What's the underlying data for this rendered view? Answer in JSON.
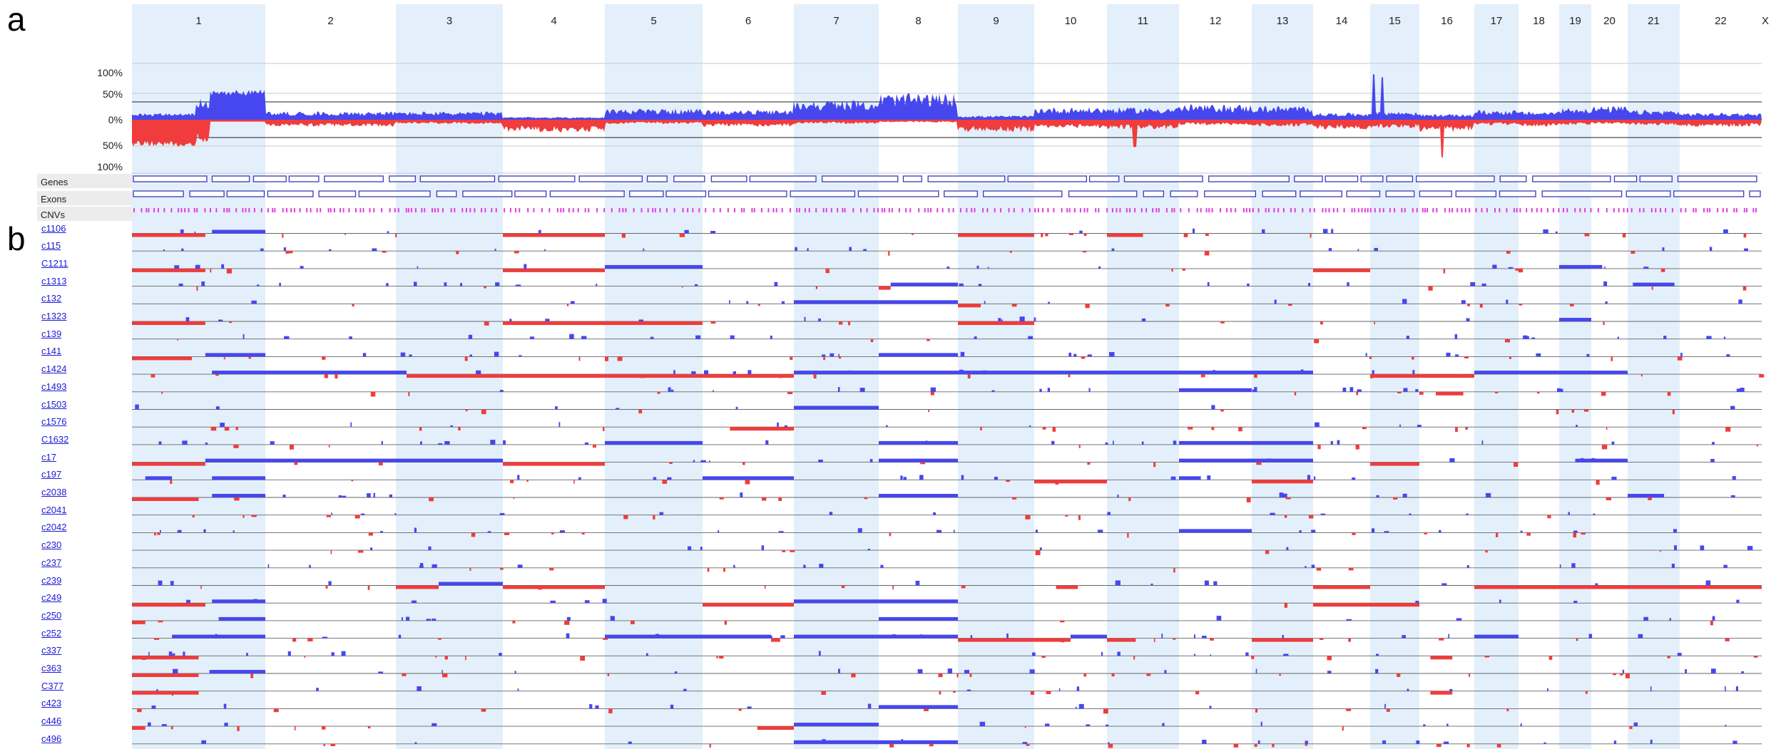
{
  "panel_labels": {
    "a": "a",
    "b": "b"
  },
  "chromosomes": [
    "1",
    "2",
    "3",
    "4",
    "5",
    "6",
    "7",
    "8",
    "9",
    "10",
    "11",
    "12",
    "13",
    "14",
    "15",
    "16",
    "17",
    "18",
    "19",
    "20",
    "21",
    "22",
    "X"
  ],
  "axis_labels": [
    "100%",
    "50%",
    "0%",
    "50%",
    "100%"
  ],
  "track_labels": {
    "genes": "Genes",
    "exons": "Exons",
    "cnvs": "CNVs"
  },
  "samples": [
    "c1106",
    "c115",
    "C1211",
    "c1313",
    "c132",
    "c1323",
    "c139",
    "c141",
    "c1424",
    "c1493",
    "c1503",
    "c1576",
    "C1632",
    "c17",
    "c197",
    "c2038",
    "c2041",
    "c2042",
    "c230",
    "c237",
    "c239",
    "c249",
    "c250",
    "c252",
    "c337",
    "c363",
    "C377",
    "c423",
    "c446",
    "c496"
  ],
  "colors": {
    "gain": "#4747ef",
    "loss": "#f03c3c",
    "band": "#e3f0fb",
    "cnv": "#e040e0",
    "gene_box": "#3a3ab8"
  }
}
